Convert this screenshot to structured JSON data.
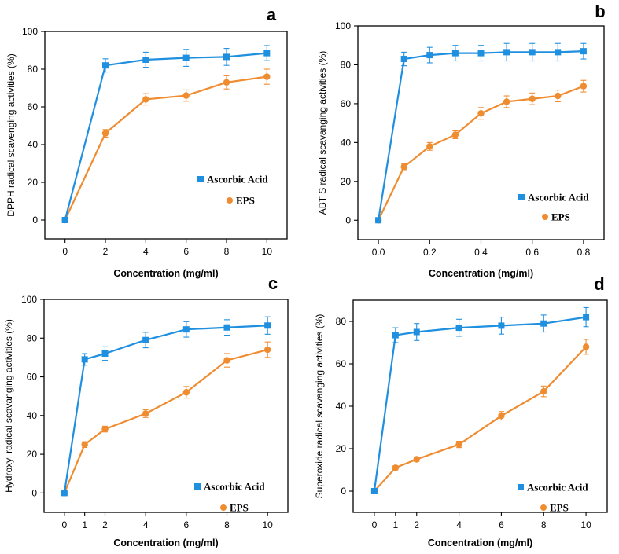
{
  "chart_data": [
    {
      "panel": "a",
      "type": "line",
      "xlabel": "Concentration (mg/ml)",
      "ylabel": "DPPH radical scavenging activities (%)",
      "xlim": [
        -1,
        11
      ],
      "ylim": [
        -10,
        100
      ],
      "xticks": [
        0,
        2,
        4,
        6,
        8,
        10
      ],
      "xtick_labels": [
        "0",
        "2",
        "4",
        "6",
        "8",
        "10"
      ],
      "yticks": [
        0,
        20,
        40,
        60,
        80,
        100
      ],
      "ytick_labels": [
        "0",
        "20",
        "40",
        "60",
        "80",
        "100"
      ],
      "series": [
        {
          "name": "Ascorbic Acid",
          "color": "#1f8fe0",
          "marker": "square",
          "x": [
            0,
            2,
            4,
            6,
            8,
            10
          ],
          "y": [
            0,
            82,
            85,
            86,
            86.5,
            88.5
          ],
          "err": [
            0,
            3.5,
            4,
            4.5,
            4.5,
            4
          ]
        },
        {
          "name": "EPS",
          "color": "#f08c30",
          "marker": "circle",
          "x": [
            0,
            2,
            4,
            6,
            8,
            10
          ],
          "y": [
            0,
            46,
            64,
            66,
            73,
            76
          ],
          "err": [
            0,
            2,
            3,
            3,
            3.5,
            4
          ]
        }
      ]
    },
    {
      "panel": "b",
      "type": "line",
      "xlabel": "Concentration (mg/ml)",
      "ylabel": "ABT S radical scavanging activities (%)",
      "xlim": [
        -0.08,
        0.88
      ],
      "ylim": [
        -10,
        100
      ],
      "xticks": [
        0,
        0.2,
        0.4,
        0.6,
        0.8
      ],
      "xtick_labels": [
        "0.0",
        "0.2",
        "0.4",
        "0.6",
        "0.8"
      ],
      "yticks": [
        0,
        20,
        40,
        60,
        80,
        100
      ],
      "ytick_labels": [
        "0",
        "20",
        "40",
        "60",
        "80",
        "100"
      ],
      "series": [
        {
          "name": "Ascorbic Acid",
          "color": "#1f8fe0",
          "marker": "square",
          "x": [
            0,
            0.1,
            0.2,
            0.3,
            0.4,
            0.5,
            0.6,
            0.7,
            0.8
          ],
          "y": [
            0,
            83,
            85,
            86,
            86,
            86.5,
            86.5,
            86.5,
            87
          ],
          "err": [
            0,
            3.5,
            4,
            4,
            4,
            4.5,
            4.5,
            4.5,
            4
          ]
        },
        {
          "name": "EPS",
          "color": "#f08c30",
          "marker": "circle",
          "x": [
            0,
            0.1,
            0.2,
            0.3,
            0.4,
            0.5,
            0.6,
            0.7,
            0.8
          ],
          "y": [
            0,
            27.5,
            38,
            44,
            55,
            61,
            62.5,
            64,
            69
          ],
          "err": [
            0,
            1.5,
            2,
            2,
            3,
            3,
            3,
            3,
            3
          ]
        }
      ]
    },
    {
      "panel": "c",
      "type": "line",
      "xlabel": "Concentration (mg/ml)",
      "ylabel": "Hydroxyl radical scavanging activities (%)",
      "xlim": [
        -1,
        11
      ],
      "ylim": [
        -10,
        100
      ],
      "xticks": [
        0,
        1,
        2,
        4,
        6,
        8,
        10
      ],
      "xtick_labels": [
        "0",
        "1",
        "2",
        "4",
        "6",
        "8",
        "10"
      ],
      "yticks": [
        0,
        20,
        40,
        60,
        80,
        100
      ],
      "ytick_labels": [
        "0",
        "20",
        "40",
        "60",
        "80",
        "100"
      ],
      "series": [
        {
          "name": "Ascorbic Acid",
          "color": "#1f8fe0",
          "marker": "square",
          "x": [
            0,
            1,
            2,
            4,
            6,
            8,
            10
          ],
          "y": [
            0,
            69,
            72,
            79,
            84.5,
            85.5,
            86.5
          ],
          "err": [
            0,
            3,
            3.5,
            4,
            4,
            4,
            4.5
          ]
        },
        {
          "name": "EPS",
          "color": "#f08c30",
          "marker": "circle",
          "x": [
            0,
            1,
            2,
            4,
            6,
            8,
            10
          ],
          "y": [
            0,
            25,
            33,
            41,
            52,
            68.5,
            74
          ],
          "err": [
            0,
            1.5,
            1.5,
            2,
            3,
            3.5,
            4
          ]
        }
      ]
    },
    {
      "panel": "d",
      "type": "line",
      "xlabel": "Concentration (mg/ml)",
      "ylabel": "Superoxide radical scavanging activities (%)",
      "xlim": [
        -1,
        11
      ],
      "ylim": [
        -10,
        90
      ],
      "xticks": [
        0,
        1,
        2,
        4,
        6,
        8,
        10
      ],
      "xtick_labels": [
        "0",
        "1",
        "2",
        "4",
        "6",
        "8",
        "10"
      ],
      "yticks": [
        0,
        20,
        40,
        60,
        80
      ],
      "ytick_labels": [
        "0",
        "20",
        "40",
        "60",
        "80"
      ],
      "series": [
        {
          "name": "Ascorbic Acid",
          "color": "#1f8fe0",
          "marker": "square",
          "x": [
            0,
            1,
            2,
            4,
            6,
            8,
            10
          ],
          "y": [
            0,
            73.5,
            75,
            77,
            78,
            79,
            82
          ],
          "err": [
            0,
            3.5,
            4,
            4,
            4,
            4,
            4.5
          ]
        },
        {
          "name": "EPS",
          "color": "#f08c30",
          "marker": "circle",
          "x": [
            0,
            1,
            2,
            4,
            6,
            8,
            10
          ],
          "y": [
            0,
            11,
            15,
            22,
            35.5,
            47,
            68
          ],
          "err": [
            0,
            1,
            1,
            1.5,
            2,
            2.5,
            3.5
          ]
        }
      ]
    }
  ]
}
